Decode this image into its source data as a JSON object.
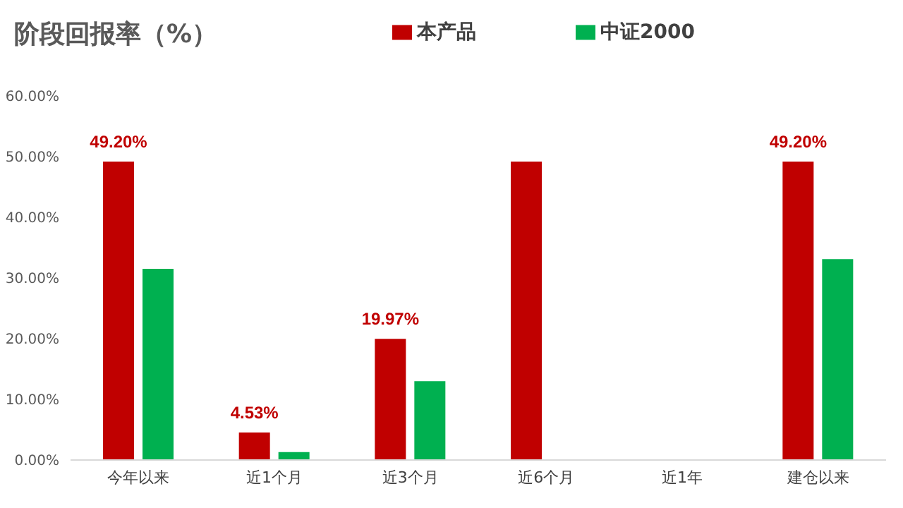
{
  "chart_data": {
    "type": "bar",
    "title": "阶段回报率（%）",
    "categories": [
      "今年以来",
      "近1个月",
      "近3个月",
      "近6个月",
      "近1年",
      "建仓以来"
    ],
    "series": [
      {
        "name": "本产品",
        "color": "#c00000",
        "values": [
          49.2,
          4.53,
          19.97,
          49.2,
          null,
          49.2
        ],
        "value_labels": [
          "49.20%",
          "4.53%",
          "19.97%",
          null,
          null,
          "49.20%"
        ]
      },
      {
        "name": "中证2000",
        "color": "#00b050",
        "values": [
          31.5,
          1.3,
          13.0,
          null,
          null,
          33.1
        ]
      }
    ],
    "ylim": [
      0,
      60
    ],
    "yticks": [
      {
        "value": 0,
        "label": "0.00%"
      },
      {
        "value": 10,
        "label": "10.00%"
      },
      {
        "value": 20,
        "label": "20.00%"
      },
      {
        "value": 30,
        "label": "30.00%"
      },
      {
        "value": 40,
        "label": "40.00%"
      },
      {
        "value": 50,
        "label": "50.00%"
      },
      {
        "value": 60,
        "label": "60.00%"
      }
    ],
    "grid": false,
    "legend": "top"
  }
}
